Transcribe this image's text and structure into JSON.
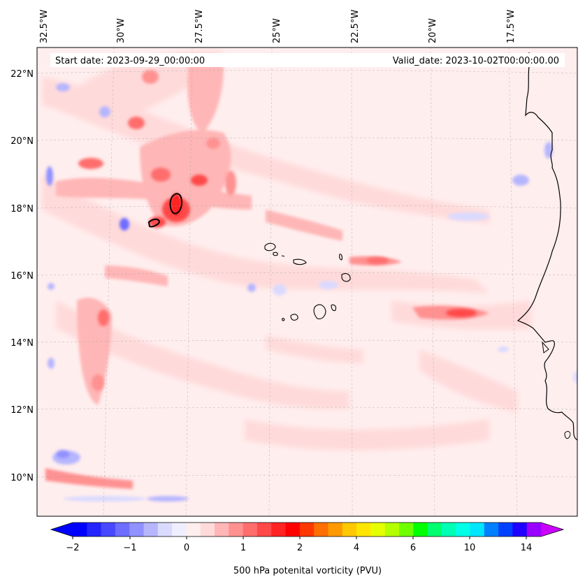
{
  "map": {
    "header_left": "Start date: 2023-09-29_00:00:00",
    "header_right": "Valid_date: 2023-10-02T00:00:00.00",
    "lon_labels": [
      "32.5°W",
      "30°W",
      "27.5°W",
      "25°W",
      "22.5°W",
      "20°W",
      "17.5°W"
    ],
    "lat_labels": [
      "22°N",
      "20°N",
      "18°N",
      "16°N",
      "14°N",
      "12°N",
      "10°N"
    ],
    "field": "500 hPa potential vorticity",
    "region": "Eastern tropical Atlantic, Cape Verde Islands and West African coast"
  },
  "colorbar": {
    "label": "500 hPa potenital vorticity (PVU)",
    "ticks": [
      "−2",
      "−1",
      "0",
      "1",
      "2",
      "4",
      "6",
      "10",
      "14"
    ],
    "colors": [
      "#0000ff",
      "#2424ff",
      "#4848ff",
      "#6d6dff",
      "#9191ff",
      "#b6b6ff",
      "#dadaff",
      "#eeeeff",
      "#ffeeee",
      "#ffdada",
      "#ffb6b6",
      "#ff9191",
      "#ff6d6d",
      "#ff4848",
      "#ff2424",
      "#ff0000",
      "#ff3700",
      "#ff6e00",
      "#ff9900",
      "#ffc800",
      "#ffe600",
      "#e6ff00",
      "#b4ff00",
      "#6eff00",
      "#00ff00",
      "#00ff6e",
      "#00ffb4",
      "#00ffe6",
      "#00e6ff",
      "#0080ff",
      "#0040ff",
      "#2000ff",
      "#9900ff"
    ],
    "extend_low_color": "#0000ff",
    "extend_high_color": "#cc00ff"
  }
}
